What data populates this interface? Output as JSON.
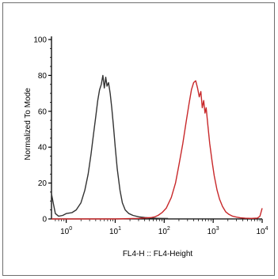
{
  "chart_data": {
    "type": "line",
    "title": "",
    "xlabel": "FL4-H :: FL4-Height",
    "ylabel": "Normalized To Mode",
    "xscale": "log",
    "xlim": [
      0.5,
      10000
    ],
    "ylim": [
      0,
      100
    ],
    "grid": false,
    "legend": "none",
    "x_ticks": [
      {
        "value": 1,
        "base": "10",
        "exp": "0"
      },
      {
        "value": 10,
        "base": "10",
        "exp": "1"
      },
      {
        "value": 100,
        "base": "10",
        "exp": "2"
      },
      {
        "value": 1000,
        "base": "10",
        "exp": "3"
      },
      {
        "value": 10000,
        "base": "10",
        "exp": "4"
      }
    ],
    "y_ticks": [
      "0",
      "20",
      "40",
      "60",
      "80",
      "100"
    ],
    "series": [
      {
        "color": "#333333",
        "points": [
          [
            0.5,
            14
          ],
          [
            0.55,
            8
          ],
          [
            0.6,
            3
          ],
          [
            0.7,
            1.5
          ],
          [
            0.85,
            2
          ],
          [
            1.0,
            3
          ],
          [
            1.3,
            3.5
          ],
          [
            1.6,
            5
          ],
          [
            2.0,
            9
          ],
          [
            2.4,
            16
          ],
          [
            2.8,
            25
          ],
          [
            3.2,
            36
          ],
          [
            3.6,
            47
          ],
          [
            4.0,
            57
          ],
          [
            4.4,
            66
          ],
          [
            4.8,
            72
          ],
          [
            5.2,
            75
          ],
          [
            5.6,
            80
          ],
          [
            6.0,
            73
          ],
          [
            6.4,
            79
          ],
          [
            6.8,
            74
          ],
          [
            7.3,
            76
          ],
          [
            7.9,
            70
          ],
          [
            8.5,
            62
          ],
          [
            9.2,
            52
          ],
          [
            10.0,
            40
          ],
          [
            11.0,
            28
          ],
          [
            12.5,
            16
          ],
          [
            14.0,
            9
          ],
          [
            16.0,
            5
          ],
          [
            19.0,
            3
          ],
          [
            23.0,
            2
          ],
          [
            30.0,
            1.2
          ],
          [
            40.0,
            0.8
          ],
          [
            55.0,
            0.5
          ],
          [
            80.0,
            0.3
          ],
          [
            120.0,
            0.2
          ]
        ]
      },
      {
        "color": "#c8282a",
        "points": [
          [
            0.5,
            0
          ],
          [
            10,
            0
          ],
          [
            30,
            0.3
          ],
          [
            45,
            0.6
          ],
          [
            55,
            0.8
          ],
          [
            65,
            1.2
          ],
          [
            75,
            2
          ],
          [
            90,
            3.5
          ],
          [
            110,
            6
          ],
          [
            140,
            12
          ],
          [
            170,
            20
          ],
          [
            200,
            30
          ],
          [
            240,
            42
          ],
          [
            280,
            54
          ],
          [
            320,
            64
          ],
          [
            360,
            72
          ],
          [
            400,
            76
          ],
          [
            440,
            77
          ],
          [
            480,
            73
          ],
          [
            520,
            68
          ],
          [
            560,
            71
          ],
          [
            600,
            62
          ],
          [
            640,
            66
          ],
          [
            680,
            59
          ],
          [
            720,
            62
          ],
          [
            780,
            52
          ],
          [
            850,
            42
          ],
          [
            950,
            32
          ],
          [
            1050,
            24
          ],
          [
            1200,
            16
          ],
          [
            1350,
            11
          ],
          [
            1550,
            7
          ],
          [
            1800,
            4
          ],
          [
            2100,
            2.5
          ],
          [
            2500,
            1.5
          ],
          [
            3000,
            1
          ],
          [
            3600,
            0.6
          ],
          [
            4500,
            0.4
          ],
          [
            6000,
            0.3
          ],
          [
            8000,
            0.5
          ],
          [
            9000,
            1.5
          ],
          [
            10000,
            6
          ]
        ]
      }
    ]
  }
}
